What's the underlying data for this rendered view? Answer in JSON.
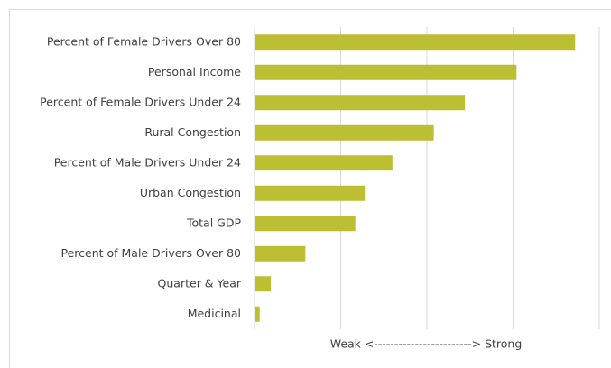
{
  "chart_data": {
    "type": "bar",
    "orientation": "horizontal",
    "categories": [
      "Percent of Female Drivers Over 80",
      "Personal Income",
      "Percent of Female Drivers Under 24",
      "Rural Congestion",
      "Percent of Male Drivers Under 24",
      "Urban Congestion",
      "Total GDP",
      "Percent of Male Drivers Over 80",
      "Quarter & Year",
      "Medicinal"
    ],
    "values": [
      3.72,
      3.04,
      2.44,
      2.08,
      1.6,
      1.28,
      1.17,
      0.59,
      0.19,
      0.06
    ],
    "color": "#bcbf32",
    "xlim": [
      0,
      4
    ],
    "xgrid": [
      1,
      2,
      3,
      4
    ],
    "grid": true,
    "xlabel": "Weak <------------------------> Strong"
  }
}
